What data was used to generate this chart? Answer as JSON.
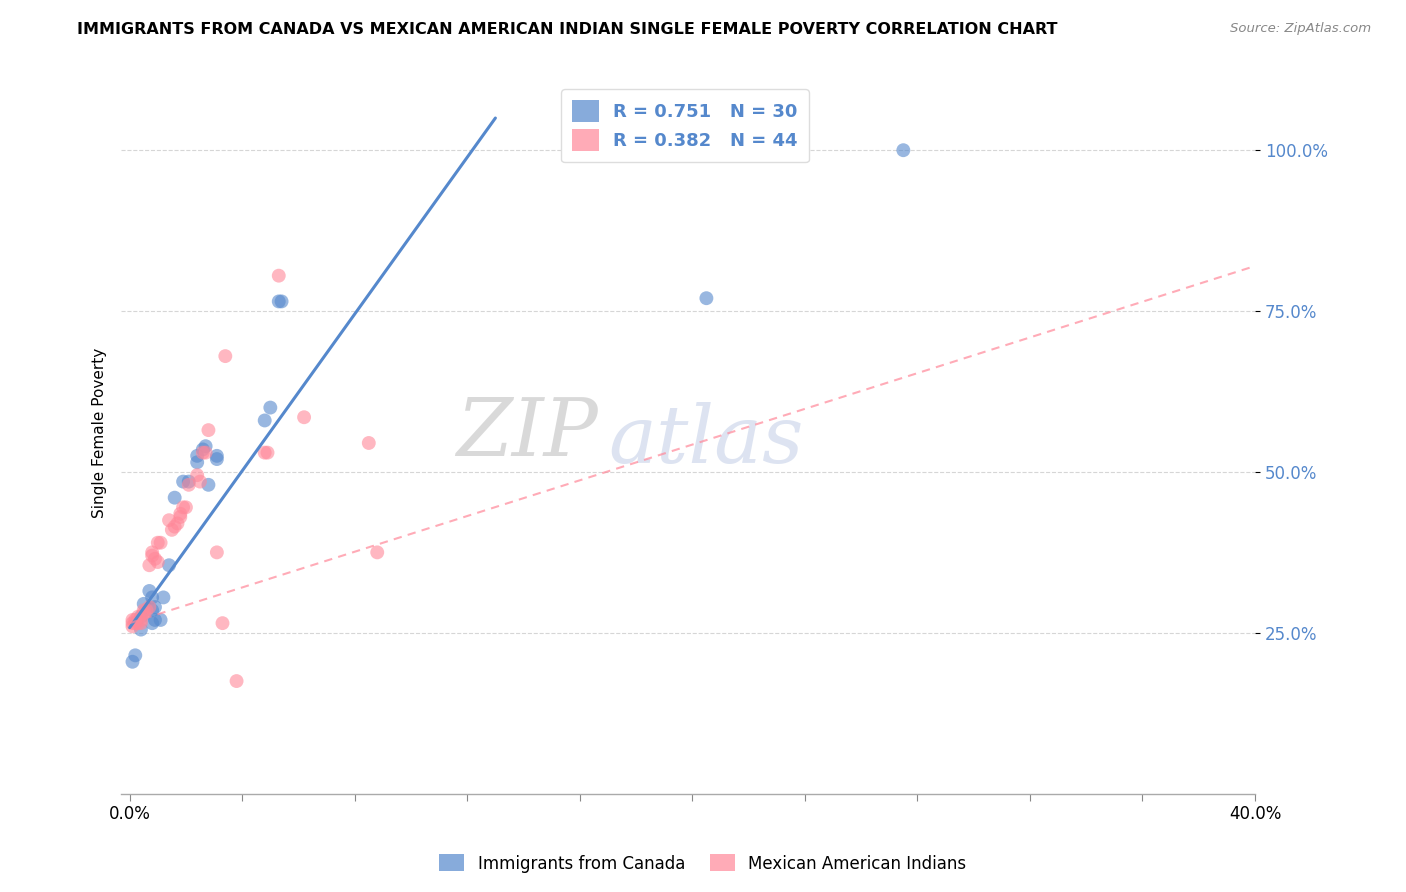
{
  "title": "IMMIGRANTS FROM CANADA VS MEXICAN AMERICAN INDIAN SINGLE FEMALE POVERTY CORRELATION CHART",
  "source": "Source: ZipAtlas.com",
  "ylabel": "Single Female Poverty",
  "legend_label1": "R = 0.751   N = 30",
  "legend_label2": "R = 0.382   N = 44",
  "legend_bottom1": "Immigrants from Canada",
  "legend_bottom2": "Mexican American Indians",
  "watermark_zip": "ZIP",
  "watermark_atlas": "atlas",
  "blue_color": "#5588CC",
  "pink_color": "#FF8899",
  "blue_scatter": [
    [
      0.001,
      0.205
    ],
    [
      0.002,
      0.215
    ],
    [
      0.004,
      0.275
    ],
    [
      0.004,
      0.255
    ],
    [
      0.005,
      0.295
    ],
    [
      0.007,
      0.315
    ],
    [
      0.008,
      0.305
    ],
    [
      0.008,
      0.285
    ],
    [
      0.008,
      0.265
    ],
    [
      0.009,
      0.29
    ],
    [
      0.009,
      0.27
    ],
    [
      0.011,
      0.27
    ],
    [
      0.012,
      0.305
    ],
    [
      0.014,
      0.355
    ],
    [
      0.016,
      0.46
    ],
    [
      0.019,
      0.485
    ],
    [
      0.021,
      0.485
    ],
    [
      0.024,
      0.525
    ],
    [
      0.024,
      0.515
    ],
    [
      0.026,
      0.535
    ],
    [
      0.027,
      0.54
    ],
    [
      0.028,
      0.48
    ],
    [
      0.031,
      0.52
    ],
    [
      0.031,
      0.525
    ],
    [
      0.048,
      0.58
    ],
    [
      0.05,
      0.6
    ],
    [
      0.053,
      0.765
    ],
    [
      0.054,
      0.765
    ],
    [
      0.205,
      0.77
    ],
    [
      0.275,
      1.0
    ]
  ],
  "pink_scatter": [
    [
      0.001,
      0.26
    ],
    [
      0.001,
      0.265
    ],
    [
      0.001,
      0.27
    ],
    [
      0.002,
      0.265
    ],
    [
      0.002,
      0.27
    ],
    [
      0.003,
      0.265
    ],
    [
      0.003,
      0.275
    ],
    [
      0.004,
      0.265
    ],
    [
      0.004,
      0.27
    ],
    [
      0.005,
      0.28
    ],
    [
      0.005,
      0.285
    ],
    [
      0.006,
      0.285
    ],
    [
      0.007,
      0.29
    ],
    [
      0.007,
      0.355
    ],
    [
      0.008,
      0.375
    ],
    [
      0.008,
      0.37
    ],
    [
      0.009,
      0.365
    ],
    [
      0.01,
      0.36
    ],
    [
      0.01,
      0.39
    ],
    [
      0.011,
      0.39
    ],
    [
      0.014,
      0.425
    ],
    [
      0.015,
      0.41
    ],
    [
      0.016,
      0.415
    ],
    [
      0.017,
      0.42
    ],
    [
      0.018,
      0.43
    ],
    [
      0.018,
      0.435
    ],
    [
      0.019,
      0.445
    ],
    [
      0.02,
      0.445
    ],
    [
      0.021,
      0.48
    ],
    [
      0.024,
      0.495
    ],
    [
      0.025,
      0.485
    ],
    [
      0.026,
      0.53
    ],
    [
      0.027,
      0.53
    ],
    [
      0.028,
      0.565
    ],
    [
      0.031,
      0.375
    ],
    [
      0.033,
      0.265
    ],
    [
      0.034,
      0.68
    ],
    [
      0.038,
      0.175
    ],
    [
      0.048,
      0.53
    ],
    [
      0.049,
      0.53
    ],
    [
      0.053,
      0.805
    ],
    [
      0.062,
      0.585
    ],
    [
      0.085,
      0.545
    ],
    [
      0.088,
      0.375
    ]
  ],
  "blue_line_x": [
    0.0,
    0.13
  ],
  "blue_line_y": [
    0.258,
    1.05
  ],
  "pink_line_x": [
    0.0,
    0.4
  ],
  "pink_line_y": [
    0.265,
    0.82
  ],
  "xlim": [
    -0.003,
    0.4
  ],
  "ylim": [
    0.0,
    1.12
  ],
  "y_ticks_vals": [
    0.25,
    0.5,
    0.75,
    1.0
  ],
  "y_ticks_labels": [
    "25.0%",
    "50.0%",
    "75.0%",
    "100.0%"
  ],
  "x_ticks_vals": [
    0.0,
    0.04,
    0.08,
    0.12,
    0.16,
    0.2,
    0.24,
    0.28,
    0.32,
    0.36,
    0.4
  ],
  "x_ticks_labels": [
    "0.0%",
    "",
    "",
    "",
    "",
    "",
    "",
    "",
    "",
    "",
    "40.0%"
  ]
}
